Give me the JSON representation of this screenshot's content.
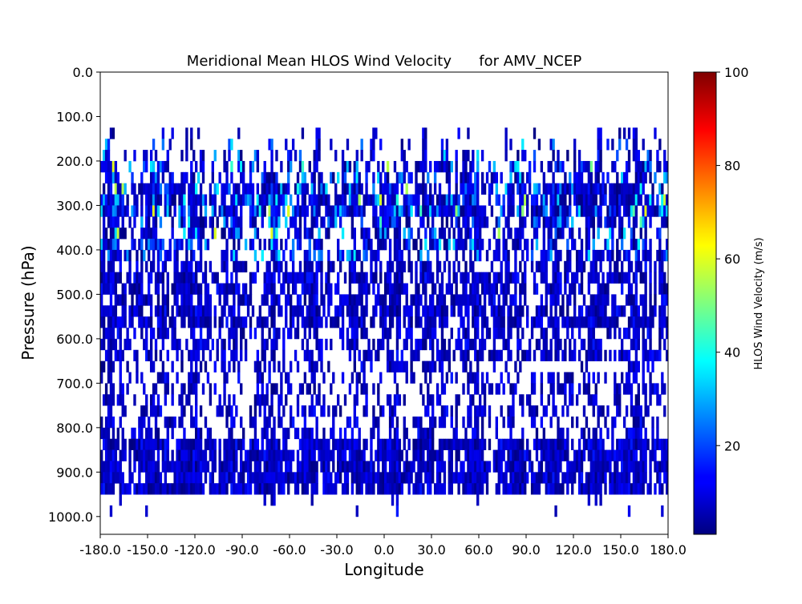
{
  "chart_data": {
    "type": "heatmap",
    "title": "Meridional Mean HLOS Wind Velocity      for AMV_NCEP",
    "xlabel": "Longitude",
    "ylabel": "Pressure (hPa)",
    "xlim": [
      -180,
      180
    ],
    "ylim": [
      1040,
      0
    ],
    "y_inverted": true,
    "x_ticks": [
      -180,
      -150,
      -120,
      -90,
      -60,
      -30,
      0,
      30,
      60,
      90,
      120,
      150,
      180
    ],
    "x_tick_labels": [
      "-180.0",
      "-150.0",
      "-120.0",
      "-90.0",
      "-60.0",
      "-30.0",
      "0.0",
      "30.0",
      "60.0",
      "90.0",
      "120.0",
      "150.0",
      "180.0"
    ],
    "y_ticks": [
      0,
      100,
      200,
      300,
      400,
      500,
      600,
      700,
      800,
      900,
      1000
    ],
    "y_tick_labels": [
      "0.0",
      "100.0",
      "200.0",
      "300.0",
      "400.0",
      "500.0",
      "600.0",
      "700.0",
      "800.0",
      "900.0",
      "1000.0"
    ],
    "colormap": "jet",
    "colorbar": {
      "label": "HLOS Wind Velocity (m/s)",
      "range": [
        1,
        100
      ],
      "ticks": [
        20,
        40,
        60,
        80,
        100
      ],
      "tick_labels": [
        "20",
        "40",
        "60",
        "80",
        "100"
      ]
    },
    "grid": false,
    "data_summary": {
      "lon_range": [
        -180,
        180
      ],
      "pressure_range": [
        125,
        970
      ],
      "value_range_m_s": [
        1,
        62
      ],
      "dominant_range_m_s": [
        1,
        15
      ],
      "gaps": "white where no observations"
    }
  }
}
